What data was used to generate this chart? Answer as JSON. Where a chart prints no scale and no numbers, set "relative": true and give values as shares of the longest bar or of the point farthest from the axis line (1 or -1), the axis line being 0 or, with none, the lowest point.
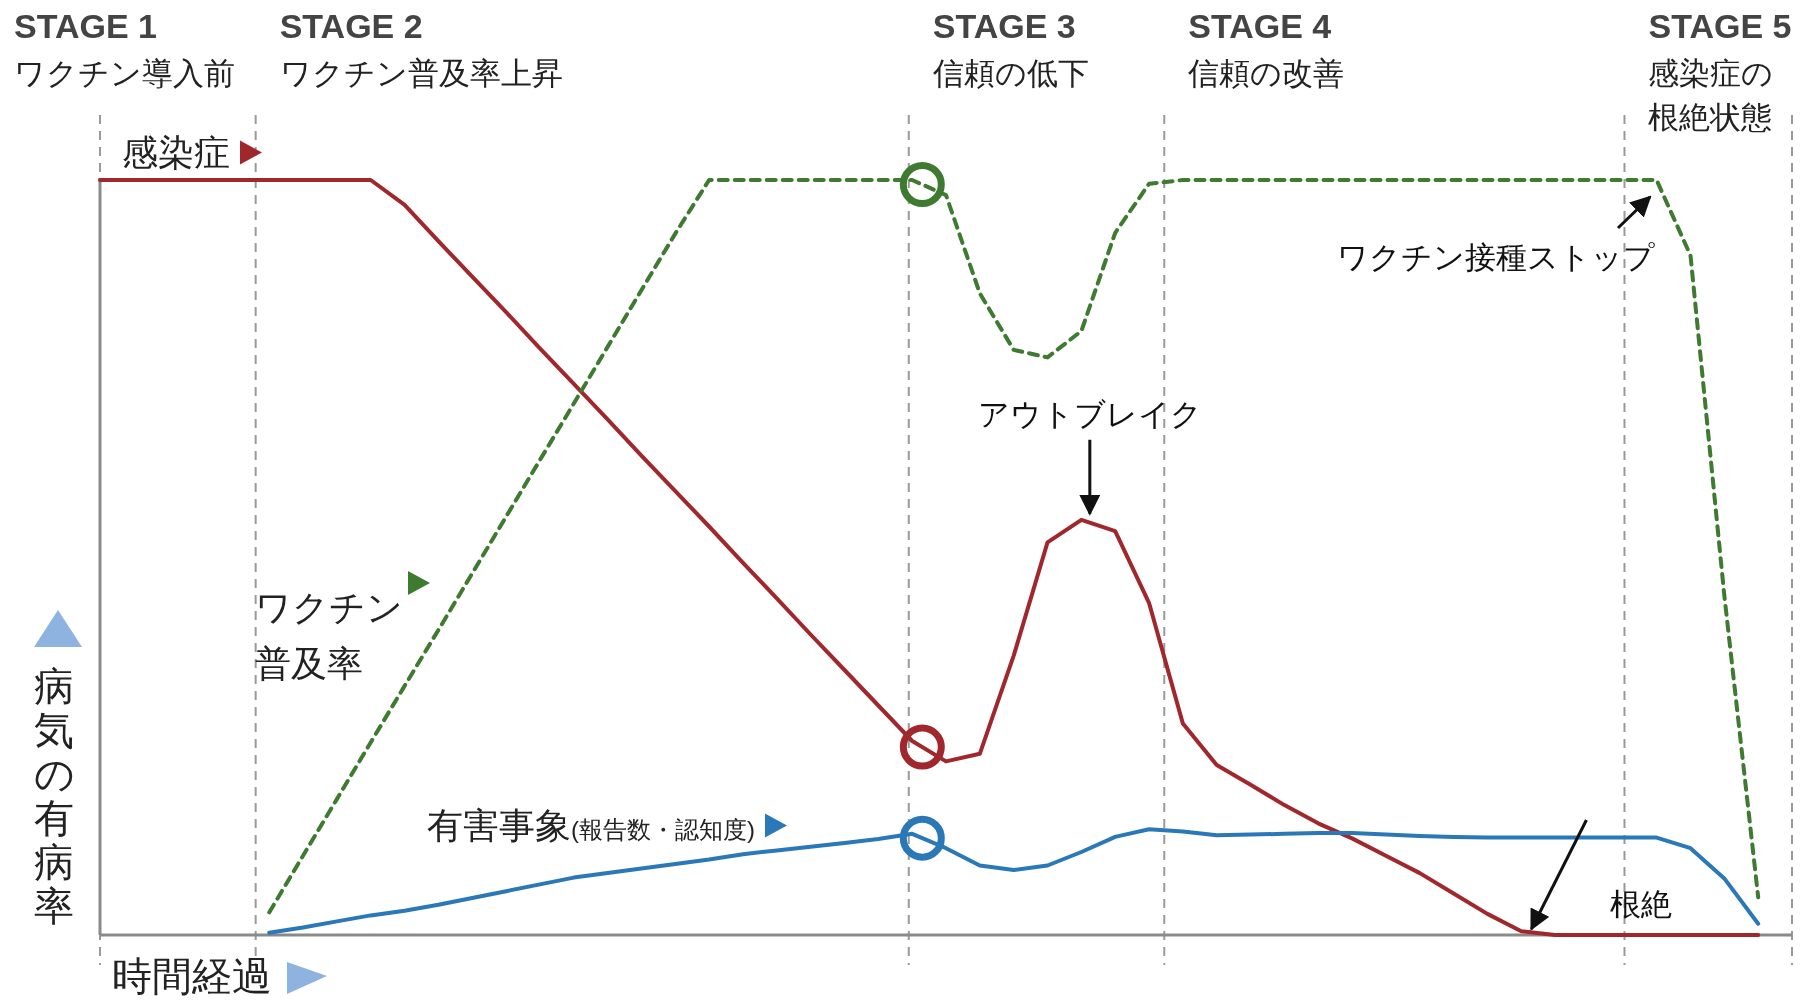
{
  "chart_data": {
    "type": "line",
    "relative": true,
    "grid": false,
    "legend": "left",
    "marker": "none",
    "xlabel": "時間経過",
    "ylabel": "病気の有病率",
    "categories": [
      null,
      null,
      null,
      null,
      null,
      null,
      null,
      null,
      null,
      null,
      null,
      null,
      null,
      null,
      null,
      null,
      null,
      null,
      null,
      null,
      null,
      null,
      null,
      null,
      null,
      null,
      null,
      null,
      null,
      null,
      null,
      null,
      null,
      null,
      null,
      null,
      null,
      null,
      null,
      null,
      null,
      null,
      null,
      null,
      null,
      null,
      null,
      null,
      null,
      null,
      null
    ],
    "series": [
      {
        "name": "感染症",
        "color": "#a0282d",
        "line_style": "solid",
        "values": [
          1,
          1,
          1,
          1,
          1,
          1,
          1,
          1,
          1,
          0.967,
          0.919,
          0.872,
          0.825,
          0.777,
          0.73,
          0.683,
          0.635,
          0.588,
          0.541,
          0.493,
          0.446,
          0.398,
          0.351,
          0.304,
          0.257,
          0.23,
          0.24,
          0.37,
          0.52,
          0.55,
          0.535,
          0.44,
          0.28,
          0.225,
          0.199,
          0.172,
          0.148,
          0.128,
          0.105,
          0.082,
          0.055,
          0.028,
          0.005,
          0,
          0,
          0,
          0,
          0,
          0,
          0,
          null
        ]
      },
      {
        "name": "ワクチン普及率",
        "color": "#3f7a31",
        "line_style": "dashed",
        "values": [
          null,
          null,
          null,
          null,
          null,
          0.03,
          0.105,
          0.18,
          0.255,
          0.33,
          0.404,
          0.479,
          0.554,
          0.629,
          0.704,
          0.779,
          0.854,
          0.929,
          1,
          1,
          1,
          1,
          1,
          1,
          1,
          0.98,
          0.85,
          0.775,
          0.765,
          0.8,
          0.93,
          0.995,
          1,
          1,
          1,
          1,
          1,
          1,
          1,
          1,
          1,
          1,
          1,
          1,
          1,
          1,
          1,
          0.9,
          0.45,
          0.05,
          null
        ]
      },
      {
        "name": "有害事象(報告数・認知度)",
        "color": "#2a78b8",
        "line_style": "solid",
        "values": [
          null,
          null,
          null,
          null,
          null,
          0.003,
          0.01,
          0.018,
          0.026,
          0.032,
          0.04,
          0.049,
          0.058,
          0.067,
          0.076,
          0.082,
          0.088,
          0.094,
          0.1,
          0.107,
          0.112,
          0.117,
          0.122,
          0.127,
          0.134,
          0.115,
          0.092,
          0.086,
          0.092,
          0.11,
          0.13,
          0.14,
          0.137,
          0.132,
          0.133,
          0.134,
          0.135,
          0.135,
          0.133,
          0.131,
          0.13,
          0.129,
          0.129,
          0.129,
          0.129,
          0.129,
          0.129,
          0.115,
          0.075,
          0.015,
          null
        ]
      }
    ],
    "annotations": [
      "STAGE 1\nワクチン導入前",
      "STAGE 2\nワクチン普及率上昇",
      "STAGE 3\n信頼の低下",
      "STAGE 4\n信頼の改善",
      "STAGE 5\n感染症の根絶状態",
      {
        "text": "アウトブレイク",
        "y": 0.55
      },
      "ワクチン接種ストップ",
      {
        "text": "根絶",
        "y": 0
      }
    ]
  }
}
